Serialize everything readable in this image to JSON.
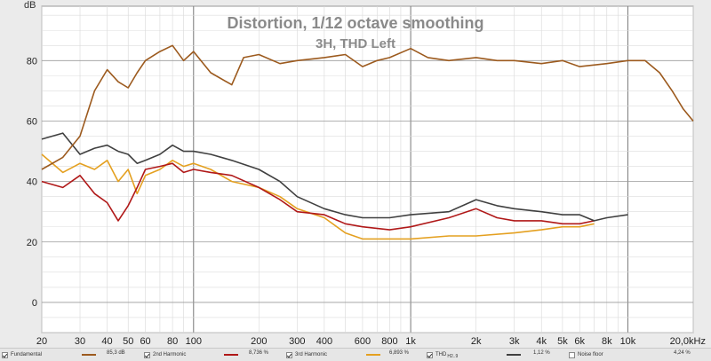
{
  "chart_data": {
    "type": "line",
    "title": "Distortion, 1/12 octave smoothing",
    "subtitle": "3H, THD Left",
    "ylabel": "dB",
    "xlabel": "",
    "x_scale": "log",
    "xlim": [
      20,
      20000
    ],
    "ylim": [
      -10,
      98
    ],
    "x_ticks": [
      20,
      30,
      40,
      50,
      60,
      80,
      100,
      200,
      300,
      400,
      600,
      800,
      1000,
      2000,
      3000,
      4000,
      5000,
      6000,
      8000,
      10000,
      20000
    ],
    "x_tick_labels": [
      "20",
      "30",
      "40",
      "50",
      "60",
      "80",
      "100",
      "200",
      "300",
      "400",
      "600",
      "800",
      "1k",
      "2k",
      "3k",
      "4k",
      "5k",
      "6k",
      "8k",
      "10k",
      "20,0kHz"
    ],
    "y_ticks": [
      0,
      20,
      40,
      60,
      80
    ],
    "grid": true,
    "series": [
      {
        "name": "Fundamental",
        "color": "#9c5a1e",
        "x": [
          20,
          25,
          30,
          35,
          40,
          45,
          50,
          55,
          60,
          70,
          80,
          90,
          100,
          120,
          150,
          170,
          200,
          250,
          300,
          400,
          500,
          600,
          700,
          800,
          1000,
          1200,
          1500,
          2000,
          2500,
          3000,
          4000,
          5000,
          6000,
          8000,
          10000,
          12000,
          14000,
          16000,
          18000,
          20000
        ],
        "y": [
          44,
          48,
          55,
          70,
          77,
          73,
          71,
          76,
          80,
          83,
          85,
          80,
          83,
          76,
          72,
          81,
          82,
          79,
          80,
          81,
          82,
          78,
          80,
          81,
          84,
          81,
          80,
          81,
          80,
          80,
          79,
          80,
          78,
          79,
          80,
          80,
          76,
          70,
          64,
          60
        ]
      },
      {
        "name": "2nd Harmonic",
        "color": "#b01818",
        "x": [
          20,
          25,
          30,
          35,
          40,
          45,
          50,
          55,
          60,
          70,
          80,
          90,
          100,
          120,
          150,
          200,
          250,
          300,
          400,
          500,
          600,
          800,
          1000,
          1500,
          2000,
          2500,
          3000,
          4000,
          5000,
          6000,
          7000
        ],
        "y": [
          40,
          38,
          42,
          36,
          33,
          27,
          32,
          38,
          44,
          45,
          46,
          43,
          44,
          43,
          42,
          38,
          34,
          30,
          29,
          26,
          25,
          24,
          25,
          28,
          31,
          28,
          27,
          27,
          26,
          26,
          27
        ]
      },
      {
        "name": "3rd Harmonic",
        "color": "#e4a020",
        "x": [
          20,
          25,
          30,
          35,
          40,
          45,
          50,
          55,
          60,
          70,
          80,
          90,
          100,
          120,
          150,
          200,
          250,
          300,
          400,
          500,
          600,
          800,
          1000,
          1500,
          2000,
          3000,
          4000,
          5000,
          6000,
          7000
        ],
        "y": [
          49,
          43,
          46,
          44,
          47,
          40,
          44,
          36,
          42,
          44,
          47,
          45,
          46,
          44,
          40,
          38,
          35,
          31,
          28,
          23,
          21,
          21,
          21,
          22,
          22,
          23,
          24,
          25,
          25,
          26
        ]
      },
      {
        "name": "THD",
        "color": "#404040",
        "x": [
          20,
          25,
          30,
          35,
          40,
          45,
          50,
          55,
          60,
          70,
          80,
          90,
          100,
          120,
          150,
          200,
          250,
          300,
          400,
          500,
          600,
          800,
          1000,
          1500,
          2000,
          2500,
          3000,
          4000,
          5000,
          6000,
          7000,
          8000,
          10000
        ],
        "y": [
          54,
          56,
          49,
          51,
          52,
          50,
          49,
          46,
          47,
          49,
          52,
          50,
          50,
          49,
          47,
          44,
          40,
          35,
          31,
          29,
          28,
          28,
          29,
          30,
          34,
          32,
          31,
          30,
          29,
          29,
          27,
          28,
          29
        ]
      }
    ]
  },
  "legend": {
    "items": [
      {
        "label": "Fundamental",
        "value": "85,3 dB",
        "color": "#9c5a1e",
        "checked": true
      },
      {
        "label": "2nd Harmonic",
        "value": "8,736 %",
        "color": "#b01818",
        "checked": true
      },
      {
        "label": "3rd Harmonic",
        "value": "6,893 %",
        "color": "#e4a020",
        "checked": true
      },
      {
        "label": "THD",
        "sub": "H2..9",
        "value": "1,12 %",
        "color": "#404040",
        "checked": true
      },
      {
        "label": "Noise floor",
        "value": "4,24 %",
        "color": "#a0a0a0",
        "checked": false
      }
    ]
  }
}
